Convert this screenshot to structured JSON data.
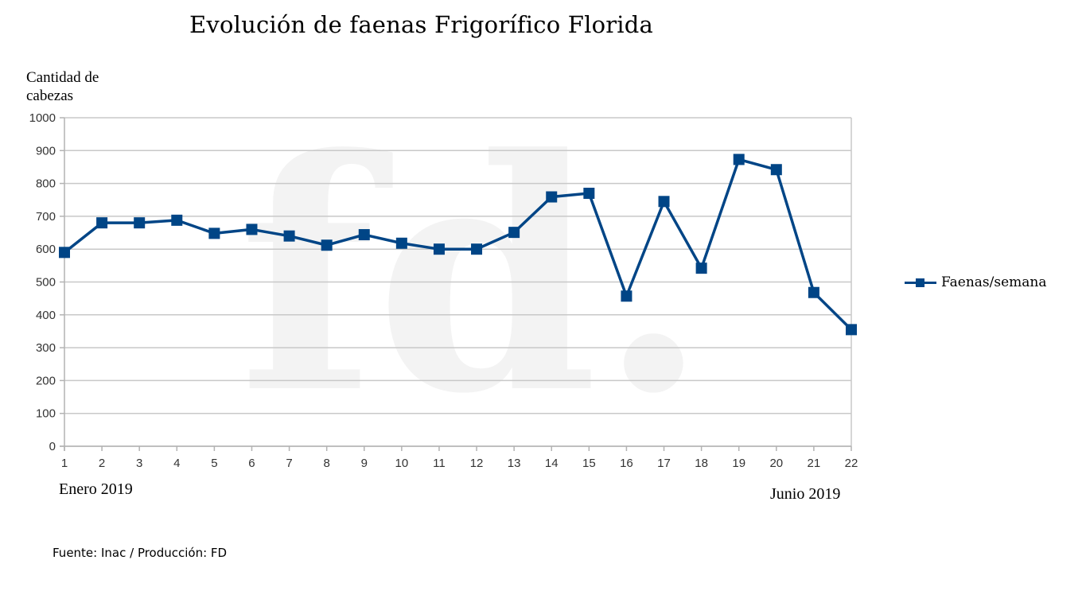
{
  "chart_data": {
    "type": "line",
    "title": "Evolución de faenas Frigorífico Florida",
    "ylabel": "Cantidad de cabezas",
    "xlabel": "",
    "x": [
      1,
      2,
      3,
      4,
      5,
      6,
      7,
      8,
      9,
      10,
      11,
      12,
      13,
      14,
      15,
      16,
      17,
      18,
      19,
      20,
      21,
      22
    ],
    "x_tick_labels": [
      "1",
      "2",
      "3",
      "4",
      "5",
      "6",
      "7",
      "8",
      "9",
      "10",
      "11",
      "12",
      "13",
      "14",
      "15",
      "16",
      "17",
      "18",
      "19",
      "20",
      "21",
      "22"
    ],
    "y_tick_labels": [
      "0",
      "100",
      "200",
      "300",
      "400",
      "500",
      "600",
      "700",
      "800",
      "900",
      "1000"
    ],
    "ylim": [
      0,
      1000
    ],
    "xlim": [
      1,
      22
    ],
    "grid": true,
    "series": [
      {
        "name": "Faenas/semana",
        "color": "#004586",
        "marker": "square",
        "values": [
          590,
          680,
          680,
          688,
          648,
          660,
          640,
          612,
          644,
          618,
          600,
          600,
          651,
          759,
          770,
          457,
          745,
          542,
          873,
          842,
          468,
          355
        ]
      }
    ],
    "legend": {
      "position": "right",
      "entries": [
        "Faenas/semana"
      ]
    },
    "annotations": {
      "start": "Enero 2019",
      "end": "Junio 2019",
      "watermark": "fd."
    }
  },
  "source": "Fuente: Inac / Producción: FD"
}
